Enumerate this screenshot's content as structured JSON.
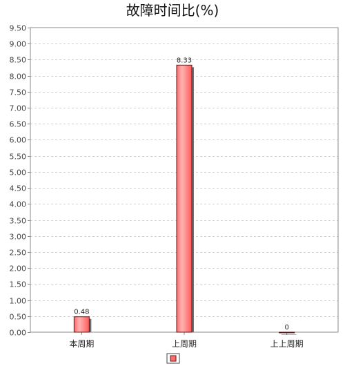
{
  "chart_data": {
    "type": "bar",
    "title": "故障时间比(%)",
    "xlabel": "",
    "ylabel": "",
    "categories": [
      "本周期",
      "上周期",
      "上上周期"
    ],
    "series": [
      {
        "values": [
          0.48,
          8.33,
          0
        ]
      }
    ],
    "data_labels": [
      "0.48",
      "8.33",
      "0"
    ],
    "ylim": [
      0,
      9.5
    ],
    "yticks": [
      0,
      0.5,
      1,
      1.5,
      2,
      2.5,
      3,
      3.5,
      4,
      4.5,
      5,
      5.5,
      6,
      6.5,
      7,
      7.5,
      8,
      8.5,
      9,
      9.5
    ],
    "grid": true,
    "legend": "bottom-center",
    "colors": {
      "bar": "#ff6b6b",
      "bar_light": "#ffb3b3",
      "bar_edge": "#5a1a1a",
      "shadow": "#6e6e6e",
      "grid": "#cfcfcf",
      "axis": "#888888"
    }
  }
}
